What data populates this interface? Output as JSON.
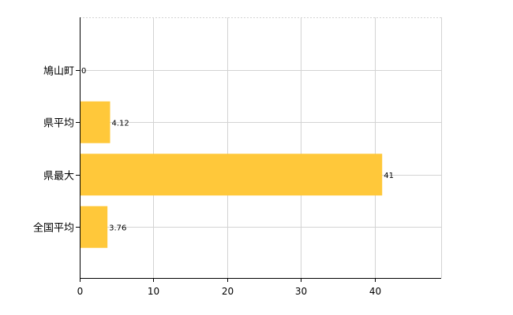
{
  "colors": {
    "bar": "#FFC83A",
    "grid": "#D3D3D3",
    "axis": "#000000",
    "background": "#FFFFFF"
  },
  "chart_data": {
    "type": "bar",
    "orientation": "horizontal",
    "categories": [
      "鳩山町",
      "県平均",
      "県最大",
      "全国平均"
    ],
    "values": [
      0,
      4.12,
      41,
      3.76
    ],
    "data_labels": [
      "0",
      "4.12",
      "41",
      "3.76"
    ],
    "xlim": [
      0,
      49
    ],
    "x_ticks": [
      0,
      10,
      20,
      30,
      40
    ],
    "x_tick_labels": [
      "0",
      "10",
      "20",
      "30",
      "40"
    ],
    "grid": true,
    "legend": "none",
    "title": "",
    "xlabel": "",
    "ylabel": ""
  }
}
